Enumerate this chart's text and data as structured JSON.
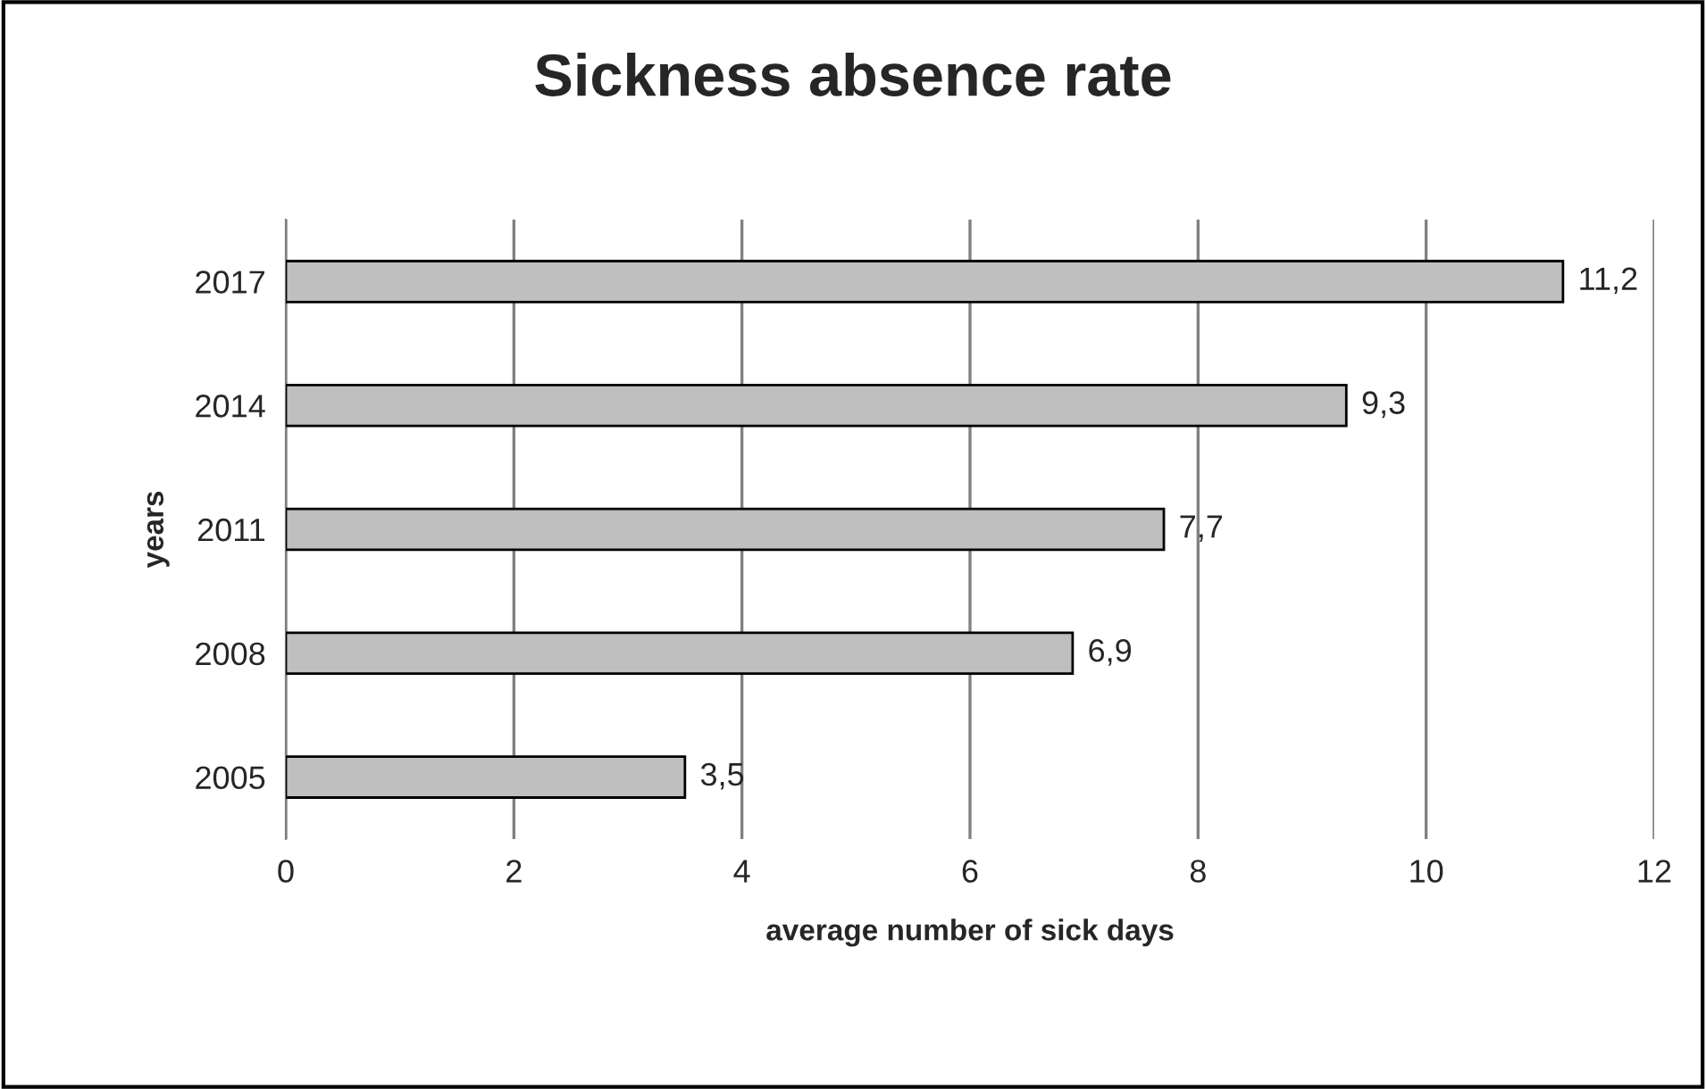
{
  "chart_data": {
    "type": "bar",
    "orientation": "horizontal",
    "title": "Sickness absence rate",
    "xlabel": "average number of sick days",
    "ylabel": "years",
    "categories": [
      "2017",
      "2014",
      "2011",
      "2008",
      "2005"
    ],
    "values": [
      11.2,
      9.3,
      7.7,
      6.9,
      3.5
    ],
    "value_labels": [
      "11,2",
      "9,3",
      "7,7",
      "6,9",
      "3,5"
    ],
    "color": "#bfbfbf",
    "xlim": [
      0,
      12
    ],
    "xticks": [
      0,
      2,
      4,
      6,
      8,
      10,
      12
    ],
    "grid": "x"
  }
}
